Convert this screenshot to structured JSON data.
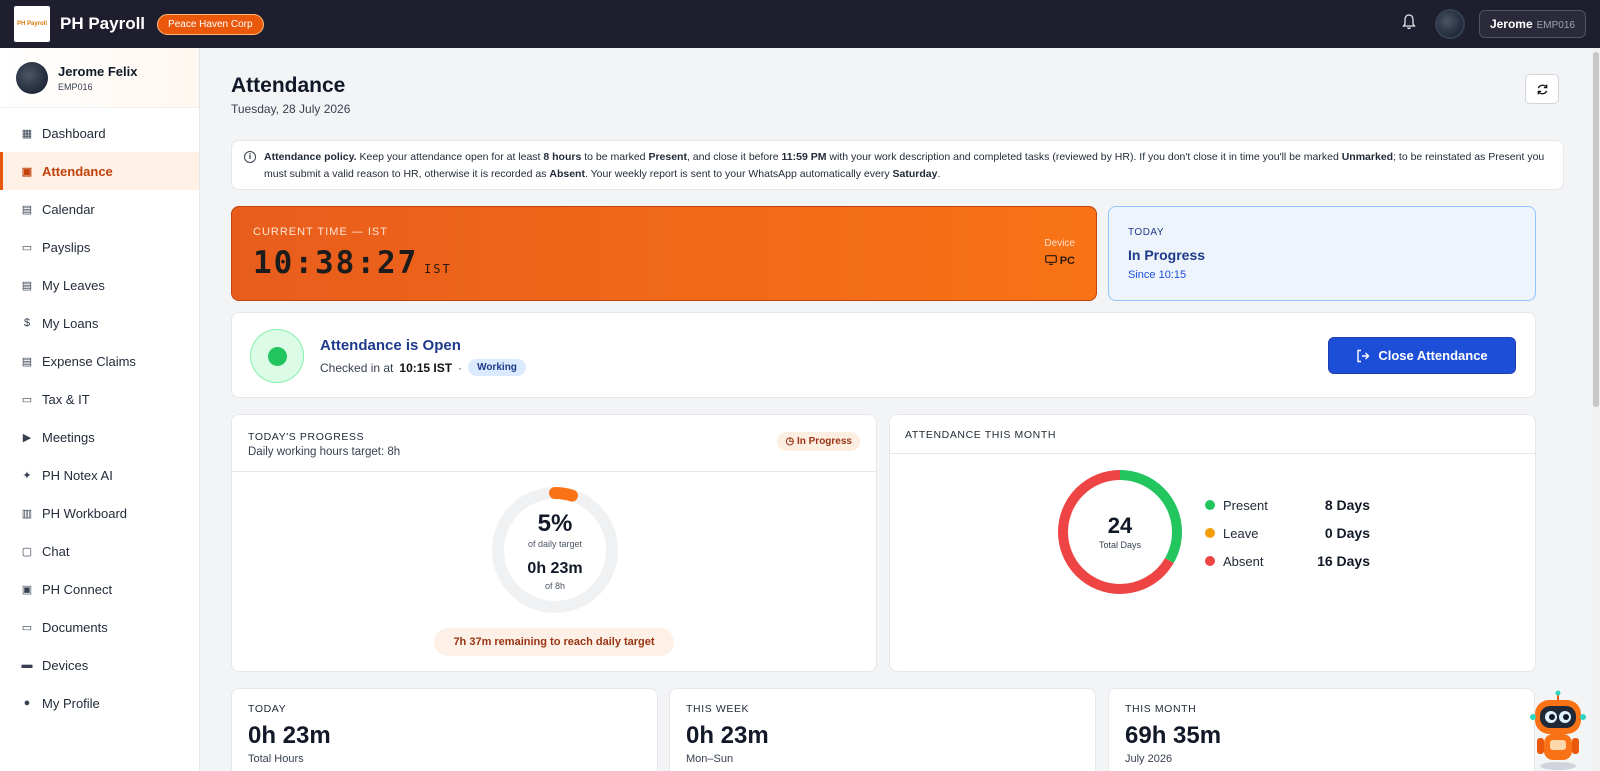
{
  "app": {
    "title": "PH Payroll",
    "logo_text": "PH Payroll",
    "org": "Peace Haven Corp"
  },
  "topbar": {
    "user_name": "Jerome",
    "user_emp": "EMP016"
  },
  "sidebar": {
    "profile": {
      "name": "Jerome Felix",
      "emp": "EMP016"
    },
    "items": [
      {
        "label": "Dashboard",
        "icon": "grid-icon",
        "glyph": "▦"
      },
      {
        "label": "Attendance",
        "icon": "clipboard-check-icon",
        "glyph": "▣",
        "active": true
      },
      {
        "label": "Calendar",
        "icon": "calendar-icon",
        "glyph": "▤"
      },
      {
        "label": "Payslips",
        "icon": "file-text-icon",
        "glyph": "▭"
      },
      {
        "label": "My Leaves",
        "icon": "calendar-check-icon",
        "glyph": "▤"
      },
      {
        "label": "My Loans",
        "icon": "dollar-icon",
        "glyph": "$"
      },
      {
        "label": "Expense Claims",
        "icon": "receipt-icon",
        "glyph": "▤"
      },
      {
        "label": "Tax & IT",
        "icon": "document-icon",
        "glyph": "▭"
      },
      {
        "label": "Meetings",
        "icon": "video-icon",
        "glyph": "▶"
      },
      {
        "label": "PH Notex AI",
        "icon": "sparkle-icon",
        "glyph": "✦"
      },
      {
        "label": "PH Workboard",
        "icon": "kanban-icon",
        "glyph": "▥"
      },
      {
        "label": "Chat",
        "icon": "message-icon",
        "glyph": "▢"
      },
      {
        "label": "PH Connect",
        "icon": "contacts-icon",
        "glyph": "▣"
      },
      {
        "label": "Documents",
        "icon": "folder-icon",
        "glyph": "▭"
      },
      {
        "label": "Devices",
        "icon": "laptop-icon",
        "glyph": "▬"
      },
      {
        "label": "My Profile",
        "icon": "user-icon",
        "glyph": "●"
      }
    ]
  },
  "page": {
    "title": "Attendance",
    "date": "Tuesday, 28 July 2026",
    "policy": {
      "lead": "Attendance policy.",
      "t1": " Keep your attendance open for at least ",
      "b1": "8 hours",
      "t2": " to be marked ",
      "b2": "Present",
      "t3": ", and close it before ",
      "b3": "11:59 PM",
      "t4": " with your work description and completed tasks (reviewed by HR). If you don't close it in time you'll be marked ",
      "b4": "Unmarked",
      "t5": "; to be reinstated as Present you must submit a valid reason to HR, otherwise it is recorded as ",
      "b5": "Absent",
      "t6": ". Your weekly report is sent to your WhatsApp automatically every ",
      "b6": "Saturday",
      "t7": "."
    },
    "clock": {
      "label": "CURRENT TIME — IST",
      "time": "10:38:27",
      "tz": "IST",
      "device_label": "Device",
      "device_value": "PC"
    },
    "today": {
      "label": "TODAY",
      "status": "In Progress",
      "since": "Since 10:15"
    },
    "open": {
      "title": "Attendance is Open",
      "checked_prefix": "Checked in at",
      "checked_time": "10:15 IST",
      "sep": "·",
      "badge": "Working",
      "button": "Close Attendance"
    },
    "progress": {
      "label": "TODAY'S PROGRESS",
      "sub": "Daily working hours target: 8h",
      "pill": "In Progress",
      "percent_text": "5%",
      "percent_value": 0.048,
      "percent_sub": "of daily target",
      "hours": "0h 23m",
      "hours_sub": "of 8h",
      "remaining": "7h 37m remaining to reach daily target"
    },
    "month": {
      "label": "ATTENDANCE THIS MONTH",
      "total": "24",
      "total_sub": "Total Days",
      "legend": [
        {
          "label": "Present",
          "value": "8 Days",
          "count": 8,
          "color": "#22c55e"
        },
        {
          "label": "Leave",
          "value": "0 Days",
          "count": 0,
          "color": "#f59e0b"
        },
        {
          "label": "Absent",
          "value": "16 Days",
          "count": 16,
          "color": "#ef4444"
        }
      ]
    },
    "stats": [
      {
        "label": "TODAY",
        "value": "0h 23m",
        "sub": "Total Hours"
      },
      {
        "label": "THIS WEEK",
        "value": "0h 23m",
        "sub": "Mon–Sun"
      },
      {
        "label": "THIS MONTH",
        "value": "69h 35m",
        "sub": "July 2026"
      }
    ]
  }
}
